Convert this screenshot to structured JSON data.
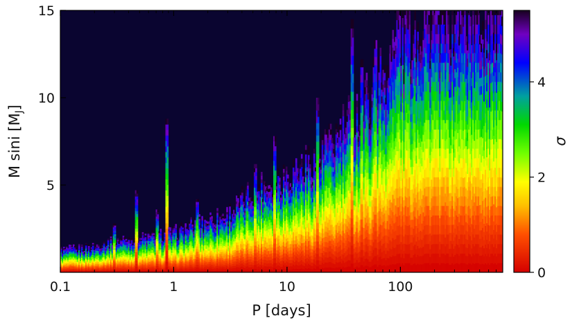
{
  "chart_data": {
    "type": "heatmap",
    "title": "",
    "xlabel": "P [days]",
    "ylabel": "M sini [M_J]",
    "ylabel_main": "M sini [M",
    "ylabel_sub": "J",
    "ylabel_close": "]",
    "x_scale": "log",
    "xlim": [
      0.1,
      800
    ],
    "ylim": [
      0,
      15
    ],
    "x_ticks": [
      {
        "value": 0.1,
        "label": "0.1"
      },
      {
        "value": 1,
        "label": "1"
      },
      {
        "value": 10,
        "label": "10"
      },
      {
        "value": 100,
        "label": "100"
      }
    ],
    "y_ticks": [
      {
        "value": 5,
        "label": "5"
      },
      {
        "value": 10,
        "label": "10"
      },
      {
        "value": 15,
        "label": "15"
      }
    ],
    "colorbar": {
      "label": "σ",
      "range": [
        0,
        5.5
      ],
      "ticks": [
        {
          "value": 0,
          "label": "0"
        },
        {
          "value": 2,
          "label": "2"
        },
        {
          "value": 4,
          "label": "4"
        }
      ],
      "colors": [
        {
          "value": 0.0,
          "color": "#d40000"
        },
        {
          "value": 0.8,
          "color": "#ff5000"
        },
        {
          "value": 1.4,
          "color": "#ffc000"
        },
        {
          "value": 1.9,
          "color": "#ffff00"
        },
        {
          "value": 2.5,
          "color": "#70ff00"
        },
        {
          "value": 3.1,
          "color": "#00d800"
        },
        {
          "value": 3.7,
          "color": "#00a0a0"
        },
        {
          "value": 4.4,
          "color": "#0000ff"
        },
        {
          "value": 5.0,
          "color": "#7000c0"
        },
        {
          "value": 5.5,
          "color": "#180020"
        }
      ]
    },
    "background_color": "#0a0530",
    "detection_limit_envelope": [
      {
        "p": 0.1,
        "m": 1.3
      },
      {
        "p": 0.2,
        "m": 1.5
      },
      {
        "p": 0.3,
        "m": 1.9
      },
      {
        "p": 0.5,
        "m": 2.0
      },
      {
        "p": 1,
        "m": 2.3
      },
      {
        "p": 2,
        "m": 3.1
      },
      {
        "p": 3,
        "m": 3.4
      },
      {
        "p": 5,
        "m": 4.8
      },
      {
        "p": 10,
        "m": 5.8
      },
      {
        "p": 20,
        "m": 6.8
      },
      {
        "p": 30,
        "m": 8.2
      },
      {
        "p": 50,
        "m": 10.0
      },
      {
        "p": 100,
        "m": 13.5
      },
      {
        "p": 150,
        "m": 15.0
      },
      {
        "p": 800,
        "m": 15.0
      }
    ],
    "spikes": [
      {
        "p": 0.3,
        "m": 2.8
      },
      {
        "p": 0.47,
        "m": 4.7
      },
      {
        "p": 0.72,
        "m": 3.6
      },
      {
        "p": 0.88,
        "m": 8.8
      },
      {
        "p": 1.6,
        "m": 4.2
      },
      {
        "p": 5.2,
        "m": 6.2
      },
      {
        "p": 7.8,
        "m": 7.8
      },
      {
        "p": 18.5,
        "m": 10.0
      },
      {
        "p": 22,
        "m": 8.2
      },
      {
        "p": 37,
        "m": 14.5
      },
      {
        "p": 45,
        "m": 12.2
      },
      {
        "p": 60,
        "m": 13.3
      },
      {
        "p": 95,
        "m": 15.0
      },
      {
        "p": 120,
        "m": 15.0
      }
    ]
  }
}
